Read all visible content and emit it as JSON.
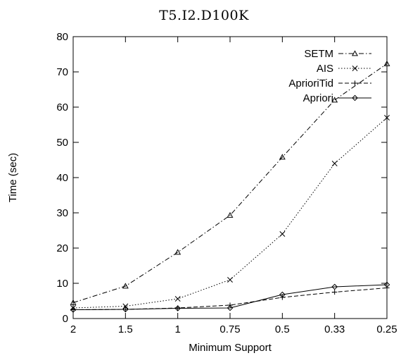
{
  "chart_data": {
    "type": "line",
    "title": "T5.I2.D100K",
    "xlabel": "Minimum Support",
    "ylabel": "Time (sec)",
    "categories": [
      "2",
      "1.5",
      "1",
      "0.75",
      "0.5",
      "0.33",
      "0.25"
    ],
    "ylim": [
      0,
      80
    ],
    "yticks": [
      0,
      10,
      20,
      30,
      40,
      50,
      60,
      70,
      80
    ],
    "grid": false,
    "legend_position": "top-right",
    "series": [
      {
        "name": "SETM",
        "marker": "triangle",
        "dash": "dashdot",
        "values": [
          4.5,
          9.2,
          18.8,
          29.3,
          45.8,
          62,
          72.3
        ]
      },
      {
        "name": "AIS",
        "marker": "cross",
        "dash": "dotted",
        "values": [
          3,
          3.5,
          5.6,
          11,
          24,
          44,
          57
        ]
      },
      {
        "name": "AprioriTid",
        "marker": "plus",
        "dash": "dashed",
        "values": [
          2.5,
          2.6,
          3,
          3.8,
          6,
          7.5,
          8.7
        ]
      },
      {
        "name": "Apriori",
        "marker": "diamond",
        "dash": "solid",
        "values": [
          2.5,
          2.6,
          2.9,
          3,
          6.8,
          9,
          9.6
        ]
      }
    ]
  }
}
